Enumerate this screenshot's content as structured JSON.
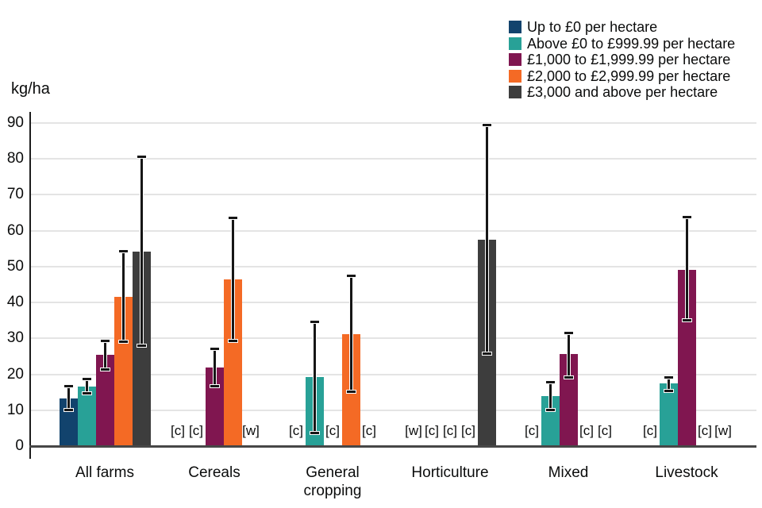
{
  "chart_data": {
    "type": "bar",
    "title": "",
    "xlabel": "",
    "ylabel": "kg/ha",
    "ylim": [
      0,
      90
    ],
    "ytick_step": 10,
    "grid": true,
    "legend_position": "top-right",
    "error_bars": true,
    "suppression_codes": [
      "[c]",
      "[w]"
    ],
    "categories": [
      "All farms",
      "Cereals",
      "General cropping",
      "Horticulture",
      "Mixed",
      "Livestock"
    ],
    "series": [
      {
        "name": "Up to £0 per hectare",
        "color": "#12436D",
        "values": [
          13.2,
          "[c]",
          "[c]",
          "[w]",
          "[c]",
          "[c]"
        ],
        "ci": [
          [
            10.1,
            16.7
          ],
          null,
          null,
          null,
          null,
          null
        ]
      },
      {
        "name": "Above £0 to £999.99 per hectare",
        "color": "#28A197",
        "values": [
          16.5,
          "[c]",
          19.3,
          "[c]",
          14.0,
          17.4
        ],
        "ci": [
          [
            14.7,
            18.7
          ],
          null,
          [
            3.7,
            34.7
          ],
          null,
          [
            10.1,
            17.7
          ],
          [
            15.4,
            19.1
          ]
        ]
      },
      {
        "name": "£1,000 to £1,999.99 per hectare",
        "color": "#801650",
        "values": [
          25.4,
          21.9,
          "[c]",
          "[c]",
          25.6,
          49.1
        ],
        "ci": [
          [
            21.3,
            29.4
          ],
          [
            16.6,
            27.0
          ],
          null,
          null,
          [
            19.1,
            31.5
          ],
          [
            35.0,
            63.7
          ]
        ]
      },
      {
        "name": "£2,000 to £2,999.99 per hectare",
        "color": "#F46A25",
        "values": [
          41.6,
          46.5,
          31.1,
          "[c]",
          "[c]",
          "[c]"
        ],
        "ci": [
          [
            29.1,
            54.2
          ],
          [
            29.2,
            63.5
          ],
          [
            15.1,
            47.5
          ],
          null,
          null,
          null
        ]
      },
      {
        "name": "£3,000 and above per hectare",
        "color": "#3D3D3D",
        "values": [
          54.1,
          "[w]",
          "[c]",
          57.5,
          "[c]",
          "[w]"
        ],
        "ci": [
          [
            28.0,
            80.5
          ],
          null,
          null,
          [
            25.8,
            89.5
          ],
          null,
          null
        ]
      }
    ]
  }
}
